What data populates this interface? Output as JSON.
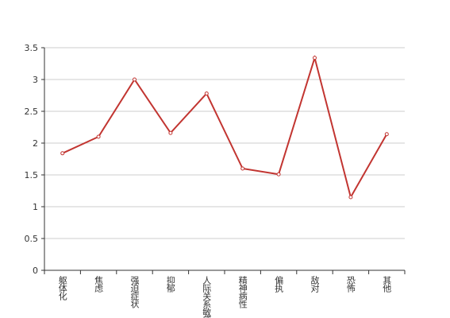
{
  "chart_data": {
    "type": "line",
    "categories": [
      "躯体化",
      "焦虑",
      "强迫症状",
      "抑郁",
      "人际关系敏感",
      "精神病性",
      "偏执",
      "敌对",
      "恐怖",
      "其他"
    ],
    "values": [
      1.84,
      2.1,
      3.0,
      2.16,
      2.78,
      1.6,
      1.51,
      3.34,
      1.15,
      2.14
    ],
    "color": "#c23531",
    "ylim": [
      0,
      3.5
    ],
    "yticks": [
      0,
      0.5,
      1,
      1.5,
      2,
      2.5,
      3,
      3.5
    ],
    "grid": true
  }
}
